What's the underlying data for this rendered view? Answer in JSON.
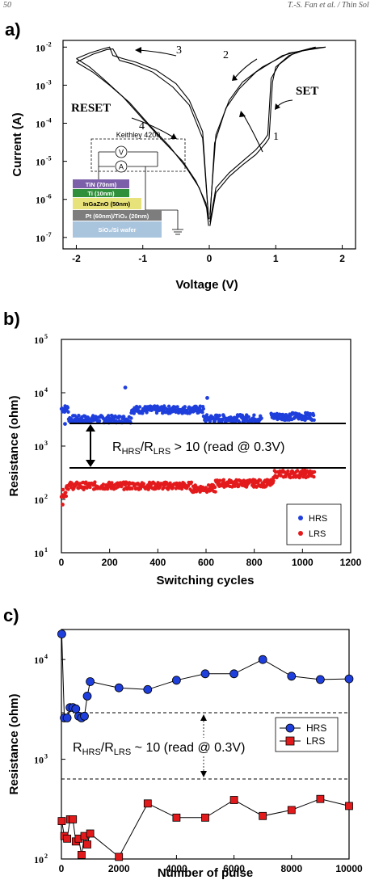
{
  "header": {
    "page_number": "50",
    "running_head": "T.-S. Fan et al. / Thin Sol"
  },
  "panels": {
    "a": {
      "letter": "a)",
      "xlabel": "Voltage (V)",
      "ylabel": "Current (A)",
      "xticks": [
        "-2",
        "-1",
        "0",
        "1",
        "2"
      ],
      "ytick_bases": [
        "10",
        "10",
        "10",
        "10",
        "10",
        "10"
      ],
      "ytick_exps": [
        "-2",
        "-3",
        "-4",
        "-5",
        "-6",
        "-7"
      ],
      "reset_label": "RESET",
      "set_label": "SET",
      "sweep_numbers": [
        "1",
        "2",
        "3",
        "4"
      ],
      "inset": {
        "instrument": "Keithley 4200",
        "voltmeter": "V",
        "ammeter": "A",
        "layers": [
          {
            "label": "TiN (70nm)",
            "color": "#7b5fa8"
          },
          {
            "label": "Ti (10nm)",
            "color": "#2f8f3a"
          },
          {
            "label": "InGaZnO (50nm)",
            "color": "#e8e27a"
          },
          {
            "label": "Pt (60nm)/TiO₂ (20nm)",
            "color": "#7d7d7d"
          },
          {
            "label": "SiO₂/Si wafer",
            "color": "#a9c4dd"
          }
        ]
      }
    },
    "b": {
      "letter": "b)",
      "xlabel": "Switching cycles",
      "ylabel": "Resistance (ohm)",
      "xticks": [
        "0",
        "200",
        "400",
        "600",
        "800",
        "1000",
        "1200"
      ],
      "ytick_bases": [
        "10",
        "10",
        "10",
        "10",
        "10"
      ],
      "ytick_exps": [
        "5",
        "4",
        "3",
        "2",
        "1"
      ],
      "ratio_prefix": "R",
      "ratio_sub1": "HRS",
      "ratio_mid": "/R",
      "ratio_sub2": "LRS",
      "ratio_suffix": " > 10 (read @ 0.3V)",
      "legend": [
        "HRS",
        "LRS"
      ]
    },
    "c": {
      "letter": "c)",
      "xlabel": "Number of pulse",
      "ylabel": "Resistance (ohm)",
      "xticks": [
        "0",
        "2000",
        "4000",
        "6000",
        "8000",
        "10000"
      ],
      "ytick_bases": [
        "10",
        "10",
        "10"
      ],
      "ytick_exps": [
        "4",
        "3",
        "2"
      ],
      "ratio_prefix": "R",
      "ratio_sub1": "HRS",
      "ratio_mid": "/R",
      "ratio_sub2": "LRS",
      "ratio_suffix": " ~ 10 (read @ 0.3V)",
      "legend": [
        "HRS",
        "LRS"
      ]
    }
  },
  "chart_data": [
    {
      "type": "line",
      "panel": "a",
      "xlabel": "Voltage (V)",
      "ylabel": "Current (A)",
      "xlim": [
        -2.2,
        2.2
      ],
      "ylim": [
        5e-08,
        0.015
      ],
      "yscale": "log",
      "curves": [
        {
          "x": [
            0.01,
            0.1,
            0.3,
            0.5,
            0.7,
            0.85,
            0.9,
            0.95,
            1.0,
            1.2,
            1.4,
            1.6,
            1.75
          ],
          "y": [
            2e-07,
            1.5e-06,
            4e-06,
            8e-06,
            1.5e-05,
            3e-05,
            4e-05,
            0.0012,
            0.003,
            0.006,
            0.008,
            0.0095,
            0.01
          ]
        },
        {
          "x": [
            0.01,
            0.1,
            0.3,
            0.5,
            0.7,
            0.82,
            0.88,
            0.93,
            1.05,
            1.25,
            1.45,
            1.6
          ],
          "y": [
            2.5e-07,
            2e-06,
            5e-06,
            1e-05,
            2e-05,
            3.5e-05,
            5e-05,
            0.0015,
            0.0035,
            0.0065,
            0.0085,
            0.01
          ]
        },
        {
          "x": [
            1.75,
            1.2,
            0.8,
            0.5,
            0.3,
            0.1,
            0.01
          ],
          "y": [
            0.01,
            0.007,
            0.003,
            0.0012,
            0.0004,
            5e-05,
            4e-07
          ]
        },
        {
          "x": [
            1.6,
            1.1,
            0.7,
            0.45,
            0.25,
            0.08,
            0.01
          ],
          "y": [
            0.01,
            0.006,
            0.0022,
            0.0008,
            0.00025,
            3e-05,
            3e-07
          ]
        },
        {
          "x": [
            -0.01,
            -0.1,
            -0.3,
            -0.5,
            -0.8,
            -1.1,
            -1.3,
            -1.45,
            -1.5,
            -1.6,
            -1.8,
            -2.0
          ],
          "y": [
            3e-07,
            6e-05,
            0.0004,
            0.0011,
            0.0025,
            0.004,
            0.005,
            0.006,
            0.01,
            0.009,
            0.007,
            0.005
          ]
        },
        {
          "x": [
            -0.01,
            -0.1,
            -0.3,
            -0.55,
            -0.85,
            -1.15,
            -1.35,
            -1.45,
            -1.55,
            -1.75,
            -2.0
          ],
          "y": [
            3e-07,
            4e-05,
            0.0003,
            0.0009,
            0.0022,
            0.0036,
            0.0045,
            0.009,
            0.0085,
            0.0065,
            0.004
          ]
        },
        {
          "x": [
            -2.0,
            -1.8,
            -1.6,
            -1.3,
            -1.0,
            -0.7,
            -0.4,
            -0.2,
            -0.05,
            -0.01
          ],
          "y": [
            0.005,
            0.003,
            0.0015,
            0.0005,
            0.00013,
            3.5e-05,
            1e-05,
            3e-06,
            8e-07,
            3e-07
          ]
        },
        {
          "x": [
            -2.0,
            -1.75,
            -1.5,
            -1.2,
            -0.9,
            -0.6,
            -0.35,
            -0.15,
            -0.04,
            -0.01
          ],
          "y": [
            0.004,
            0.0022,
            0.001,
            0.00035,
            9e-05,
            2.5e-05,
            7e-06,
            2e-06,
            6e-07,
            2e-07
          ]
        }
      ]
    },
    {
      "type": "scatter",
      "panel": "b",
      "xlabel": "Switching cycles",
      "ylabel": "Resistance (ohm)",
      "xlim": [
        0,
        1200
      ],
      "ylim": [
        10,
        100000
      ],
      "yscale": "log",
      "legend_position": "bottom-right",
      "guide_lines": [
        2300,
        350
      ],
      "series": [
        {
          "name": "HRS",
          "color": "#1f3fdc",
          "segments": [
            {
              "x_range": [
                0,
                30
              ],
              "level": 5000
            },
            {
              "x_range": [
                30,
                290
              ],
              "level": 3200
            },
            {
              "x_range": [
                290,
                590
              ],
              "level": 4800
            },
            {
              "x_range": [
                590,
                830
              ],
              "level": 3300
            },
            {
              "x_range": [
                870,
                1050
              ],
              "level": 3600
            }
          ],
          "outliers": [
            [
              265,
              12500
            ],
            [
              605,
              8000
            ],
            [
              15,
              2600
            ]
          ]
        },
        {
          "name": "LRS",
          "color": "#e31a1c",
          "segments": [
            {
              "x_range": [
                0,
                20
              ],
              "level": 130
            },
            {
              "x_range": [
                20,
                540
              ],
              "level": 180
            },
            {
              "x_range": [
                540,
                640
              ],
              "level": 160
            },
            {
              "x_range": [
                640,
                880
              ],
              "level": 200
            },
            {
              "x_range": [
                880,
                1050
              ],
              "level": 300
            }
          ],
          "outliers": [
            [
              5,
              80
            ]
          ]
        }
      ]
    },
    {
      "type": "line",
      "panel": "c",
      "xlabel": "Number of pulse",
      "ylabel": "Resistance (ohm)",
      "xlim": [
        0,
        10000
      ],
      "ylim": [
        100,
        20000
      ],
      "yscale": "log",
      "legend_position": "top-right",
      "guide_lines": [
        2300,
        420
      ],
      "series": [
        {
          "name": "HRS",
          "color": "#1f3fdc",
          "marker": "circle",
          "x": [
            10,
            100,
            200,
            300,
            400,
            500,
            600,
            700,
            800,
            900,
            1000,
            2000,
            3000,
            4000,
            5000,
            6000,
            7000,
            8000,
            9000,
            10000
          ],
          "y": [
            18000,
            2600,
            2600,
            3300,
            3300,
            3200,
            2700,
            2600,
            2700,
            4300,
            6000,
            5200,
            5000,
            6200,
            7200,
            7200,
            10000,
            6800,
            6300,
            6400
          ]
        },
        {
          "name": "LRS",
          "color": "#e31a1c",
          "marker": "square",
          "x": [
            10,
            100,
            200,
            300,
            400,
            500,
            600,
            700,
            800,
            900,
            1000,
            2000,
            3000,
            4000,
            5000,
            6000,
            7000,
            8000,
            9000,
            10000
          ],
          "y": [
            240,
            170,
            160,
            250,
            250,
            150,
            160,
            110,
            170,
            140,
            180,
            105,
            360,
            260,
            260,
            390,
            270,
            310,
            400,
            340
          ]
        }
      ]
    }
  ]
}
